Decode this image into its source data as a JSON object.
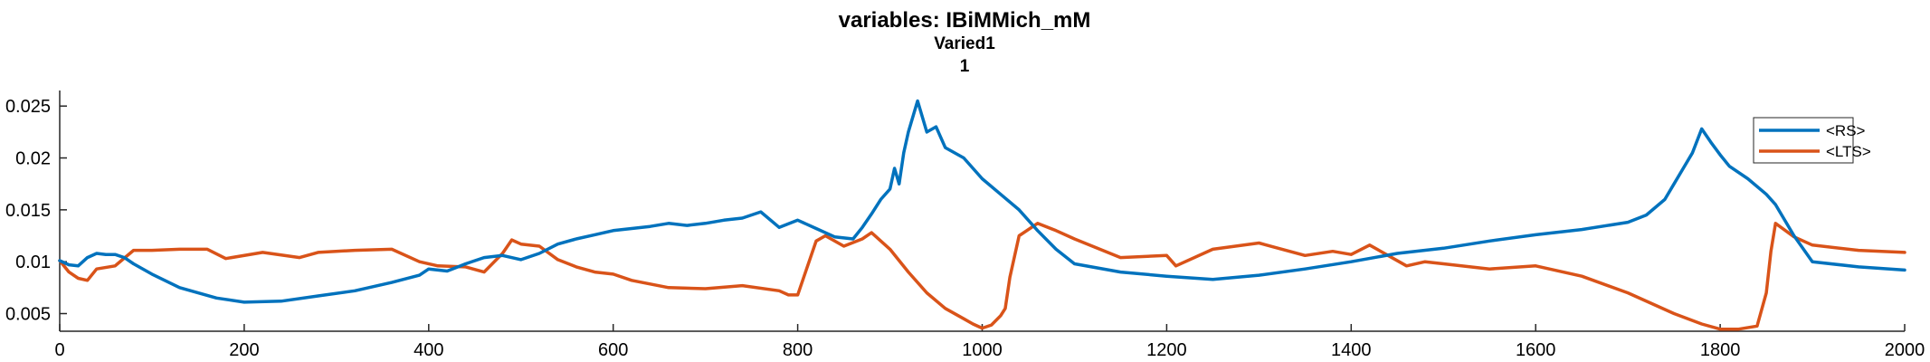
{
  "chart_data": {
    "type": "line",
    "title": "variables: IBiMMich_mM",
    "subtitle_lines": [
      "Varied1",
      "1"
    ],
    "xlabel": "",
    "ylabel": "",
    "xlim": [
      0,
      2000
    ],
    "ylim": [
      0.0033,
      0.0265
    ],
    "x_ticks": [
      0,
      200,
      400,
      600,
      800,
      1000,
      1200,
      1400,
      1600,
      1800,
      2000
    ],
    "y_ticks": [
      0.005,
      0.01,
      0.015,
      0.02,
      0.025
    ],
    "x_tick_labels": [
      "0",
      "200",
      "400",
      "600",
      "800",
      "1000",
      "1200",
      "1400",
      "1600",
      "1800",
      "2000"
    ],
    "y_tick_labels": [
      "0.005",
      "0.01",
      "0.015",
      "0.02",
      "0.025"
    ],
    "grid": false,
    "legend_position": "top-right",
    "series": [
      {
        "name": "<RS>",
        "color": "#0072BD",
        "x": [
          0,
          10,
          20,
          30,
          40,
          50,
          60,
          70,
          80,
          100,
          130,
          170,
          200,
          240,
          280,
          320,
          360,
          390,
          400,
          420,
          440,
          460,
          480,
          500,
          520,
          540,
          560,
          580,
          600,
          620,
          640,
          660,
          680,
          700,
          720,
          740,
          760,
          780,
          800,
          820,
          840,
          860,
          870,
          880,
          890,
          900,
          905,
          910,
          915,
          920,
          930,
          940,
          950,
          960,
          980,
          1000,
          1020,
          1040,
          1060,
          1080,
          1100,
          1150,
          1200,
          1250,
          1300,
          1350,
          1400,
          1450,
          1500,
          1550,
          1600,
          1650,
          1700,
          1720,
          1740,
          1750,
          1760,
          1770,
          1780,
          1790,
          1800,
          1810,
          1830,
          1850,
          1860,
          1880,
          1900,
          1950,
          2000
        ],
        "values": [
          0.0101,
          0.0097,
          0.0096,
          0.0104,
          0.0108,
          0.0107,
          0.0107,
          0.0104,
          0.0098,
          0.0088,
          0.0075,
          0.0065,
          0.0061,
          0.0062,
          0.0067,
          0.0072,
          0.008,
          0.0087,
          0.0093,
          0.0091,
          0.0098,
          0.0104,
          0.0106,
          0.0102,
          0.0108,
          0.0117,
          0.0122,
          0.0126,
          0.013,
          0.0132,
          0.0134,
          0.0137,
          0.0135,
          0.0137,
          0.014,
          0.0142,
          0.0148,
          0.0133,
          0.014,
          0.0132,
          0.0124,
          0.0122,
          0.0133,
          0.0146,
          0.016,
          0.017,
          0.019,
          0.0175,
          0.0205,
          0.0225,
          0.0255,
          0.0225,
          0.023,
          0.021,
          0.02,
          0.018,
          0.0165,
          0.015,
          0.013,
          0.0112,
          0.0098,
          0.009,
          0.0086,
          0.0083,
          0.0087,
          0.0093,
          0.01,
          0.0108,
          0.0113,
          0.012,
          0.0126,
          0.0131,
          0.0138,
          0.0145,
          0.016,
          0.0175,
          0.019,
          0.0205,
          0.0228,
          0.0215,
          0.0203,
          0.0192,
          0.018,
          0.0165,
          0.0155,
          0.0125,
          0.01,
          0.0095,
          0.0092
        ]
      },
      {
        "name": "<LTS>",
        "color": "#D95319",
        "x": [
          0,
          10,
          20,
          30,
          40,
          60,
          80,
          100,
          130,
          160,
          180,
          220,
          260,
          280,
          320,
          360,
          390,
          410,
          440,
          460,
          480,
          490,
          500,
          520,
          540,
          560,
          580,
          600,
          620,
          660,
          700,
          740,
          780,
          790,
          800,
          820,
          830,
          850,
          870,
          880,
          900,
          920,
          940,
          960,
          980,
          990,
          1000,
          1010,
          1020,
          1025,
          1030,
          1040,
          1060,
          1080,
          1100,
          1150,
          1200,
          1210,
          1250,
          1300,
          1350,
          1380,
          1400,
          1420,
          1440,
          1460,
          1480,
          1500,
          1550,
          1600,
          1650,
          1700,
          1750,
          1780,
          1800,
          1820,
          1840,
          1850,
          1855,
          1860,
          1880,
          1900,
          1950,
          2000
        ],
        "values": [
          0.0101,
          0.009,
          0.0084,
          0.0082,
          0.0093,
          0.0096,
          0.0111,
          0.0111,
          0.0112,
          0.0112,
          0.0103,
          0.0109,
          0.0104,
          0.0109,
          0.0111,
          0.0112,
          0.01,
          0.0096,
          0.0095,
          0.009,
          0.0108,
          0.0121,
          0.0117,
          0.0115,
          0.0102,
          0.0095,
          0.009,
          0.0088,
          0.0082,
          0.0075,
          0.0074,
          0.0077,
          0.0072,
          0.0068,
          0.0068,
          0.012,
          0.0125,
          0.0115,
          0.0122,
          0.0128,
          0.0112,
          0.009,
          0.007,
          0.0055,
          0.0045,
          0.004,
          0.0036,
          0.0039,
          0.0048,
          0.0055,
          0.0085,
          0.0125,
          0.0137,
          0.013,
          0.0122,
          0.0104,
          0.0106,
          0.0096,
          0.0112,
          0.0118,
          0.0106,
          0.011,
          0.0107,
          0.0116,
          0.0106,
          0.0096,
          0.01,
          0.0098,
          0.0093,
          0.0096,
          0.0086,
          0.007,
          0.005,
          0.004,
          0.0035,
          0.0035,
          0.0038,
          0.007,
          0.011,
          0.0137,
          0.0124,
          0.0116,
          0.0111,
          0.0109
        ]
      }
    ]
  }
}
